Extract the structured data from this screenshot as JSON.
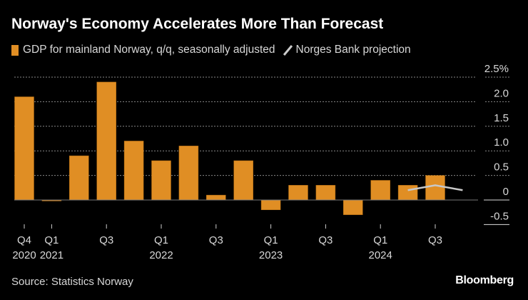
{
  "title": "Norway's Economy Accelerates More Than Forecast",
  "legend": {
    "bars": "GDP for mainland Norway, q/q, seasonally adjusted",
    "line": "Norges Bank projection"
  },
  "source": "Source: Statistics Norway",
  "logo": "Bloomberg",
  "colors": {
    "bar": "#e08e24",
    "line": "#c8c8c8",
    "grid": "#888888"
  },
  "chart_data": {
    "type": "bar",
    "title": "Norway's Economy Accelerates More Than Forecast",
    "ylabel": "%",
    "ylim": [
      -0.5,
      2.5
    ],
    "yticks": [
      "2.5%",
      "2.0",
      "1.5",
      "1.0",
      "0.5",
      "0",
      "-0.5"
    ],
    "ytick_values": [
      2.5,
      2.0,
      1.5,
      1.0,
      0.5,
      0,
      -0.5
    ],
    "grid": true,
    "legend": "top-left",
    "categories": [
      "Q4 2020",
      "Q1 2021",
      "Q2 2021",
      "Q3 2021",
      "Q4 2021",
      "Q1 2022",
      "Q2 2022",
      "Q3 2022",
      "Q4 2022",
      "Q1 2023",
      "Q2 2023",
      "Q3 2023",
      "Q4 2023",
      "Q1 2024",
      "Q2 2024",
      "Q3 2024",
      "Q4 2024"
    ],
    "xtick_labels": [
      {
        "i": 0,
        "q": "Q4",
        "y": "2020"
      },
      {
        "i": 1,
        "q": "Q1",
        "y": "2021"
      },
      {
        "i": 3,
        "q": "Q3",
        "y": ""
      },
      {
        "i": 5,
        "q": "Q1",
        "y": "2022"
      },
      {
        "i": 7,
        "q": "Q3",
        "y": ""
      },
      {
        "i": 9,
        "q": "Q1",
        "y": "2023"
      },
      {
        "i": 11,
        "q": "Q3",
        "y": ""
      },
      {
        "i": 13,
        "q": "Q1",
        "y": "2024"
      },
      {
        "i": 15,
        "q": "Q3",
        "y": ""
      }
    ],
    "series": [
      {
        "name": "GDP for mainland Norway, q/q, seasonally adjusted",
        "type": "bar",
        "values": [
          2.1,
          -0.02,
          0.9,
          2.4,
          1.2,
          0.8,
          1.1,
          0.1,
          0.8,
          -0.2,
          0.3,
          0.3,
          -0.3,
          0.4,
          0.3,
          0.5,
          null
        ]
      },
      {
        "name": "Norges Bank projection",
        "type": "line",
        "values": [
          null,
          null,
          null,
          null,
          null,
          null,
          null,
          null,
          null,
          null,
          null,
          null,
          null,
          null,
          0.2,
          0.3,
          0.2
        ]
      }
    ]
  }
}
